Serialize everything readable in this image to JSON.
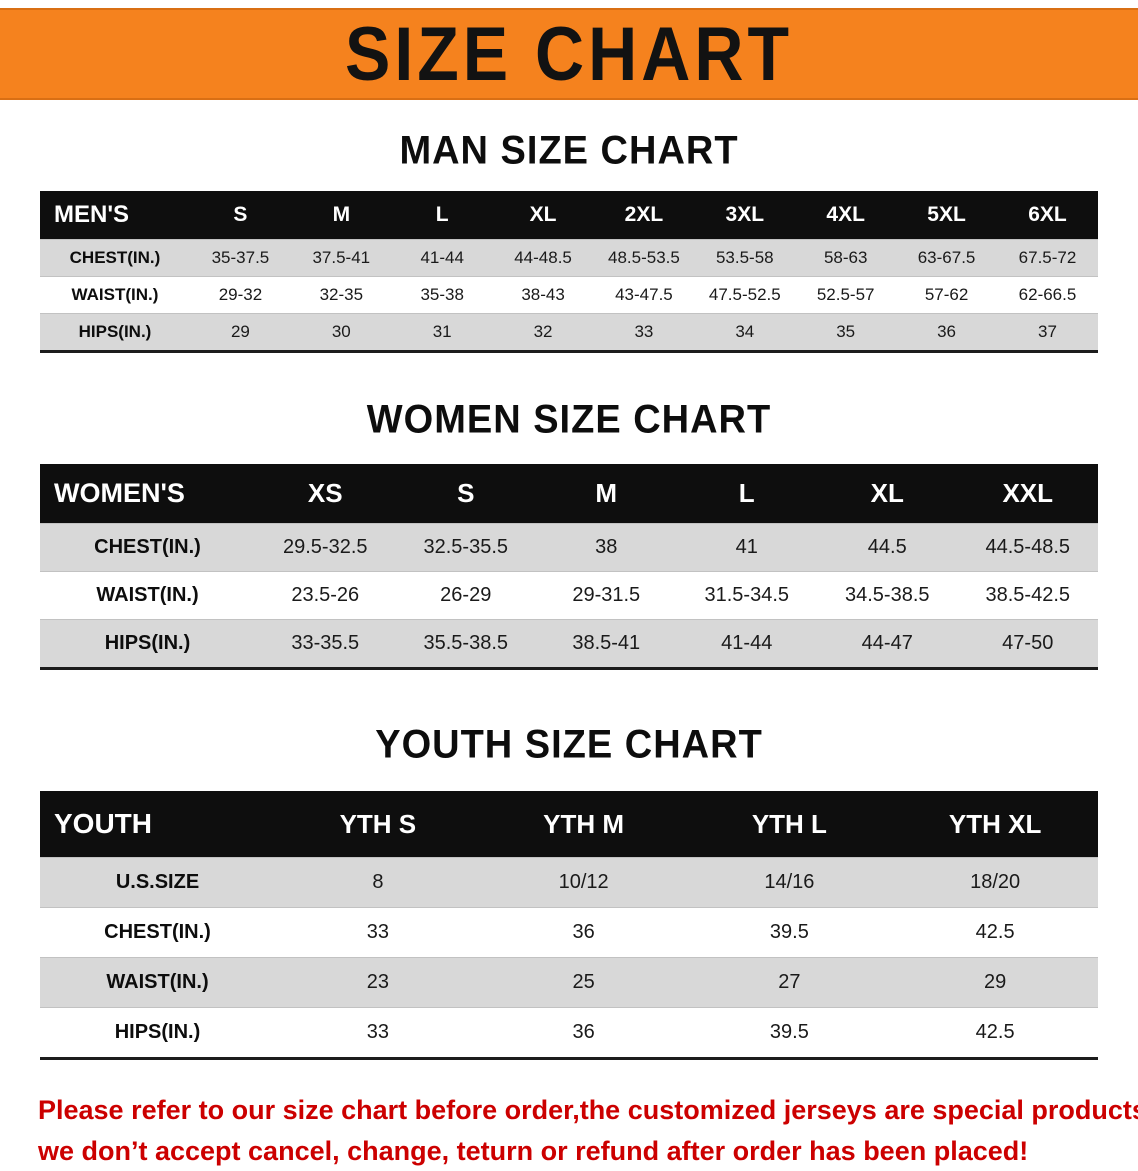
{
  "banner": {
    "title": "SIZE CHART",
    "bg_color": "#F5821E",
    "text_color": "#121212"
  },
  "colors": {
    "table_header_bg": "#0e0e0e",
    "table_header_text": "#ffffff",
    "row_gray": "#d8d8d8",
    "row_white": "#ffffff",
    "disclaimer_red": "#cc0000"
  },
  "sections": [
    {
      "heading": "MAN SIZE CHART",
      "table": {
        "label": "MEN'S",
        "sizes": [
          "S",
          "M",
          "L",
          "XL",
          "2XL",
          "3XL",
          "4XL",
          "5XL",
          "6XL"
        ],
        "rows": [
          {
            "label": "CHEST(IN.)",
            "values": [
              "35-37.5",
              "37.5-41",
              "41-44",
              "44-48.5",
              "48.5-53.5",
              "53.5-58",
              "58-63",
              "63-67.5",
              "67.5-72"
            ]
          },
          {
            "label": "WAIST(IN.)",
            "values": [
              "29-32",
              "32-35",
              "35-38",
              "38-43",
              "43-47.5",
              "47.5-52.5",
              "52.5-57",
              "57-62",
              "62-66.5"
            ]
          },
          {
            "label": "HIPS(IN.)",
            "values": [
              "29",
              "30",
              "31",
              "32",
              "33",
              "34",
              "35",
              "36",
              "37"
            ]
          }
        ]
      }
    },
    {
      "heading": "WOMEN SIZE CHART",
      "table": {
        "label": "WOMEN'S",
        "sizes": [
          "XS",
          "S",
          "M",
          "L",
          "XL",
          "XXL"
        ],
        "rows": [
          {
            "label": "CHEST(IN.)",
            "values": [
              "29.5-32.5",
              "32.5-35.5",
              "38",
              "41",
              "44.5",
              "44.5-48.5"
            ]
          },
          {
            "label": "WAIST(IN.)",
            "values": [
              "23.5-26",
              "26-29",
              "29-31.5",
              "31.5-34.5",
              "34.5-38.5",
              "38.5-42.5"
            ]
          },
          {
            "label": "HIPS(IN.)",
            "values": [
              "33-35.5",
              "35.5-38.5",
              "38.5-41",
              "41-44",
              "44-47",
              "47-50"
            ]
          }
        ]
      }
    },
    {
      "heading": "YOUTH SIZE CHART",
      "table": {
        "label": "YOUTH",
        "sizes": [
          "YTH S",
          "YTH M",
          "YTH L",
          "YTH XL"
        ],
        "rows": [
          {
            "label": "U.S.SIZE",
            "values": [
              "8",
              "10/12",
              "14/16",
              "18/20"
            ]
          },
          {
            "label": "CHEST(IN.)",
            "values": [
              "33",
              "36",
              "39.5",
              "42.5"
            ]
          },
          {
            "label": "WAIST(IN.)",
            "values": [
              "23",
              "25",
              "27",
              "29"
            ]
          },
          {
            "label": "HIPS(IN.)",
            "values": [
              "33",
              "36",
              "39.5",
              "42.5"
            ]
          }
        ]
      }
    }
  ],
  "disclaimer": {
    "line1": "Please refer to our size chart before order,the customized jerseys are special products,",
    "line2": "we don’t accept cancel, change, teturn or refund after order has been placed!"
  }
}
